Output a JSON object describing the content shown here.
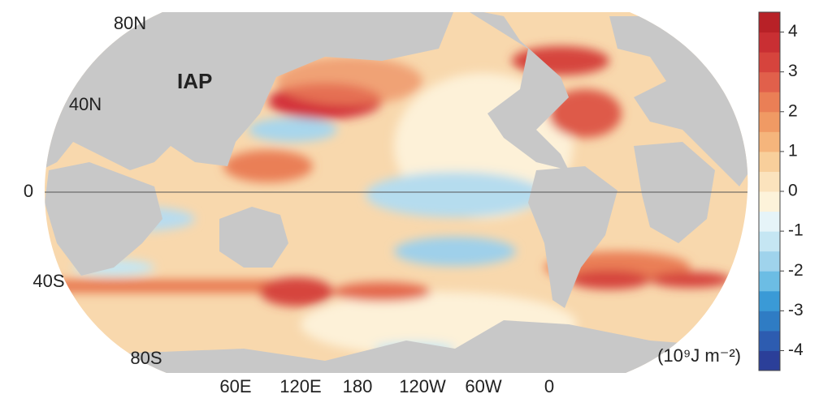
{
  "map": {
    "title": "IAP",
    "latitude_labels": [
      "80N",
      "40N",
      "0",
      "40S",
      "80S"
    ],
    "longitude_labels": [
      "60E",
      "120E",
      "180",
      "120W",
      "60W",
      "0"
    ],
    "colorbar": {
      "clim": [
        -4.5,
        4.5
      ],
      "ticks": [
        4,
        3,
        2,
        1,
        0,
        -1,
        -2,
        -3,
        -4
      ],
      "colors": [
        "#2b3f99",
        "#2d5cb0",
        "#2f7cc4",
        "#3a9ad6",
        "#6cbde4",
        "#9fd3ec",
        "#c5e6f3",
        "#e6f4f8",
        "#fdf3da",
        "#fbe3bd",
        "#f8cf9b",
        "#f5b57c",
        "#f09a64",
        "#ea7f56",
        "#e1604b",
        "#d6443d",
        "#c92f33",
        "#b82127"
      ],
      "units": "(10⁹J m⁻²)"
    }
  }
}
